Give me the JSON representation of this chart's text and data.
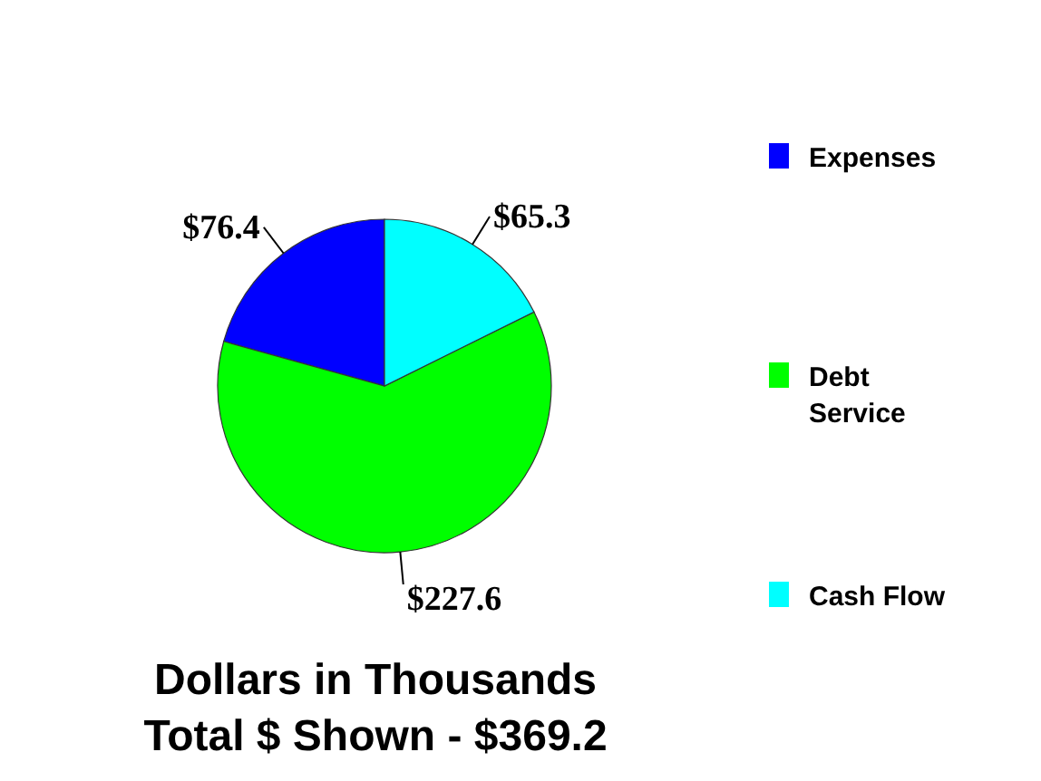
{
  "chart_data": {
    "type": "pie",
    "categories": [
      "Expenses",
      "Debt Service",
      "Cash Flow"
    ],
    "values": [
      76.4,
      227.6,
      65.3
    ],
    "colors": [
      "#0000ff",
      "#00ff00",
      "#00ffff"
    ],
    "value_labels": [
      "$76.4",
      "$227.6",
      "$65.3"
    ],
    "legend": "right",
    "annotations": [
      "Dollars in Thousands",
      "Total $ Shown - $369.2"
    ]
  }
}
